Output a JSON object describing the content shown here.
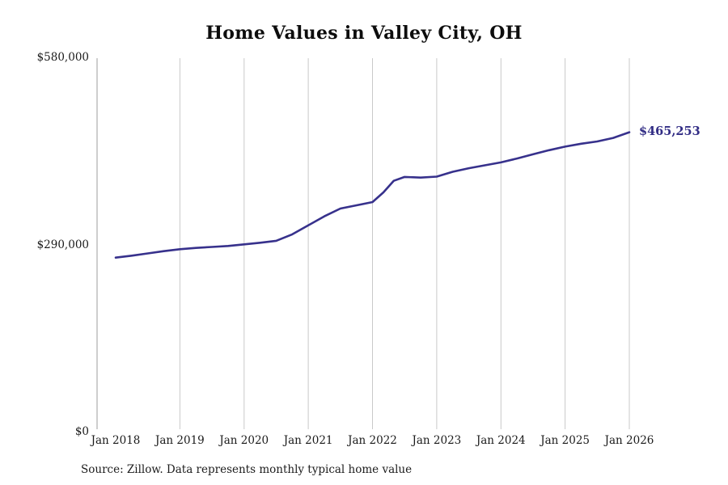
{
  "title": "Home Values in Valley City, OH",
  "end_label": "$465,253",
  "source_note": "Source: Zillow. Data represents monthly typical home value",
  "colors": {
    "line": "#37318c",
    "end_label": "#322d85",
    "grid": "#c9c9c9",
    "axis": "#9c9c9c",
    "text": "#1a1a1a"
  },
  "chart_data": {
    "type": "line",
    "title": "Home Values in Valley City, OH",
    "xlabel": "",
    "ylabel": "",
    "xlim": [
      2018,
      2026
    ],
    "ylim": [
      0,
      580000
    ],
    "grid": "vertical-only",
    "legend": "none",
    "x_ticks": [
      {
        "pos": 2018,
        "label": "Jan 2018"
      },
      {
        "pos": 2019,
        "label": "Jan 2019"
      },
      {
        "pos": 2020,
        "label": "Jan 2020"
      },
      {
        "pos": 2021,
        "label": "Jan 2021"
      },
      {
        "pos": 2022,
        "label": "Jan 2022"
      },
      {
        "pos": 2023,
        "label": "Jan 2023"
      },
      {
        "pos": 2024,
        "label": "Jan 2024"
      },
      {
        "pos": 2025,
        "label": "Jan 2025"
      },
      {
        "pos": 2026,
        "label": "Jan 2026"
      }
    ],
    "y_ticks": [
      {
        "value": 0,
        "label": "$0"
      },
      {
        "value": 290000,
        "label": "$290,000"
      },
      {
        "value": 580000,
        "label": "$580,000"
      }
    ],
    "series": [
      {
        "name": "Typical home value",
        "x": [
          2018.0,
          2018.25,
          2018.5,
          2018.75,
          2019.0,
          2019.25,
          2019.5,
          2019.75,
          2020.0,
          2020.25,
          2020.5,
          2020.75,
          2021.0,
          2021.25,
          2021.5,
          2021.75,
          2022.0,
          2022.17,
          2022.33,
          2022.5,
          2022.75,
          2023.0,
          2023.25,
          2023.5,
          2023.75,
          2024.0,
          2024.25,
          2024.5,
          2024.75,
          2025.0,
          2025.25,
          2025.5,
          2025.75,
          2026.0
        ],
        "values": [
          271000,
          274000,
          277500,
          281000,
          284000,
          286000,
          287500,
          289000,
          291500,
          294000,
          297000,
          307000,
          321000,
          335000,
          347000,
          352000,
          357000,
          372000,
          390000,
          396000,
          395000,
          396500,
          404000,
          409500,
          414000,
          418500,
          424500,
          431000,
          437500,
          443000,
          447500,
          451000,
          456500,
          465253
        ]
      }
    ],
    "annotations": [
      {
        "text": "$465,253",
        "x": 2026.0,
        "value": 465253
      }
    ]
  }
}
